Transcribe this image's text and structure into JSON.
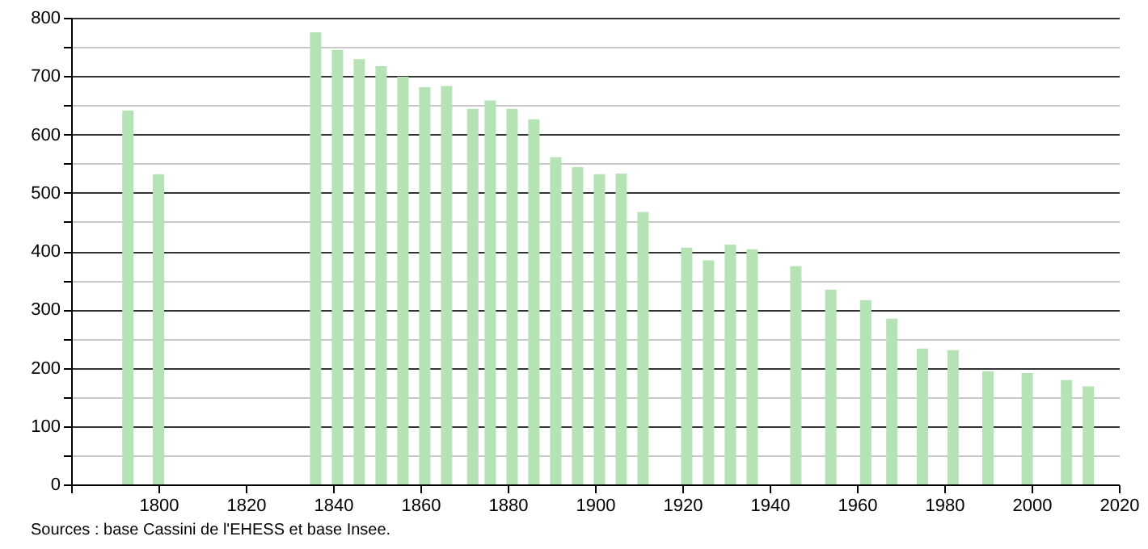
{
  "chart_data": {
    "type": "bar",
    "x": [
      1793,
      1800,
      1836,
      1841,
      1846,
      1851,
      1856,
      1861,
      1866,
      1872,
      1876,
      1881,
      1886,
      1891,
      1896,
      1901,
      1906,
      1911,
      1921,
      1926,
      1931,
      1936,
      1946,
      1954,
      1962,
      1968,
      1975,
      1982,
      1990,
      1999,
      2008,
      2013
    ],
    "values": [
      641,
      532,
      775,
      745,
      729,
      717,
      699,
      681,
      683,
      644,
      658,
      644,
      626,
      561,
      544,
      532,
      533,
      467,
      406,
      384,
      411,
      403,
      374,
      334,
      316,
      284,
      233,
      230,
      194,
      191,
      179,
      168
    ],
    "color": "#b5e3b5",
    "xlim": [
      1780,
      2020
    ],
    "xticks": [
      {
        "value": 1780,
        "label": null
      },
      1800,
      1820,
      1840,
      1860,
      1880,
      1900,
      1920,
      1940,
      1960,
      1980,
      2000,
      2020
    ],
    "ylim": [
      0,
      800
    ],
    "yticks": [
      0,
      {
        "value": 50,
        "label": null
      },
      100,
      {
        "value": 150,
        "label": null
      },
      200,
      {
        "value": 250,
        "label": null
      },
      300,
      {
        "value": 350,
        "label": null
      },
      400,
      {
        "value": 450,
        "label": null
      },
      500,
      {
        "value": 550,
        "label": null
      },
      600,
      {
        "value": 650,
        "label": null
      },
      700,
      {
        "value": 750,
        "label": null
      },
      800
    ],
    "grid": "y",
    "annotations": [
      "Sources : base Cassini de l'EHESS et base Insee."
    ]
  }
}
